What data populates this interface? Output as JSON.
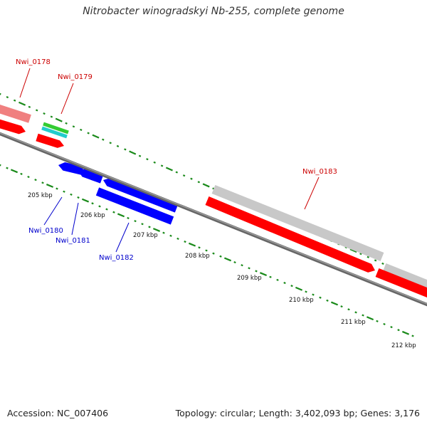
{
  "title": "Nitrobacter winogradskyi Nb-255, complete genome",
  "footer": {
    "accession": "Accession: NC_007406",
    "summary": "Topology: circular; Length: 3,402,093 bp; Genes: 3,176"
  },
  "colors": {
    "backbone": "#808080",
    "tick": "#1a8a1a",
    "cds_plus": "#ff0000",
    "cds_plus_light": "#f08080",
    "cds_minus": "#0000ff",
    "trna_green": "#33cc33",
    "trna_cyan": "#22cccc",
    "cog_grey": "#c8c8c8",
    "label_red": "#cc0000",
    "label_blue": "#0000cc"
  },
  "scale_labels": [
    "205 kbp",
    "206 kbp",
    "207 kbp",
    "208 kbp",
    "209 kbp",
    "210 kbp",
    "211 kbp",
    "212 kbp"
  ],
  "gene_labels": [
    {
      "id": "nwi-0178",
      "text": "Nwi_0178",
      "strand": "plus"
    },
    {
      "id": "nwi-0179",
      "text": "Nwi_0179",
      "strand": "plus"
    },
    {
      "id": "nwi-0180",
      "text": "Nwi_0180",
      "strand": "minus"
    },
    {
      "id": "nwi-0181",
      "text": "Nwi_0181",
      "strand": "minus"
    },
    {
      "id": "nwi-0182",
      "text": "Nwi_0182",
      "strand": "minus"
    },
    {
      "id": "nwi-0183",
      "text": "Nwi_0183",
      "strand": "plus"
    }
  ]
}
